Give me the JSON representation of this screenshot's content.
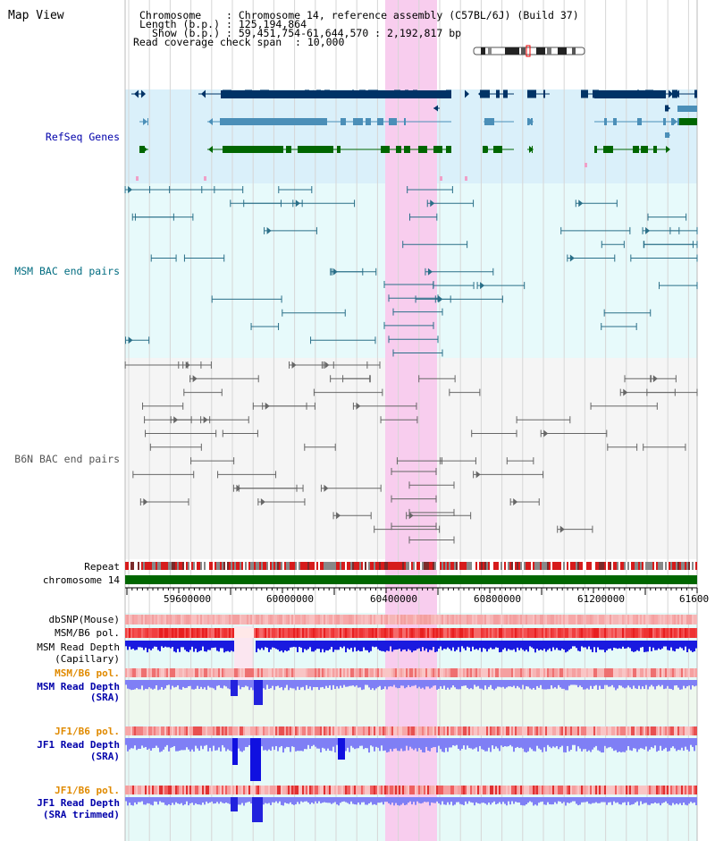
{
  "page": {
    "title": "Map View"
  },
  "header": {
    "chromosome_key": "Chromosome",
    "chromosome_value": ": Chromosome 14, reference assembly (C57BL/6J) (Build 37)",
    "length_key": "Length (b.p.)",
    "length_value": ": 125,194,864",
    "show_key": "Show (b.p.)",
    "show_value": ": 59,451,754-61,644,570 : 2,192,817 bp",
    "coverage_key": "Read coverage check span",
    "coverage_value": ": 10,000"
  },
  "tracks": {
    "refseq": "RefSeq Genes",
    "msm_bac": "MSM BAC end pairs",
    "b6n_bac": "B6N BAC end pairs",
    "repeat": "Repeat",
    "chromosome": "chromosome 14",
    "dbsnp": "dbSNP(Mouse)",
    "msm_b6_pol_1": "MSM/B6 pol.",
    "msm_depth_cap_1": "MSM Read Depth",
    "msm_depth_cap_2": "(Capillary)",
    "msm_b6_pol_2": "MSM/B6 pol.",
    "msm_depth_sra_1": "MSM Read Depth",
    "msm_depth_sra_2": "(SRA)",
    "jf1_b6_pol_1": "JF1/B6 pol.",
    "jf1_depth_sra_1": "JF1 Read Depth",
    "jf1_depth_sra_2": "(SRA)",
    "jf1_b6_pol_2": "JF1/B6 pol.",
    "jf1_depth_trim_1": "JF1 Read Depth",
    "jf1_depth_trim_2": "(SRA trimmed)"
  },
  "axis": {
    "ticks": [
      "59600000",
      "60000000",
      "60400000",
      "60800000",
      "61200000",
      "61600"
    ]
  },
  "colors": {
    "refseq_label": "#0000aa",
    "msm_label": "#006c80",
    "b6n_label": "#555555",
    "pol_label": "#e08a00",
    "depth_label": "#0000aa",
    "highlight": "#f8cdee",
    "chromosome_bar": "#006600",
    "gene_dark": "#003366",
    "gene_mid": "#4b8fb8",
    "gene_green": "#006600"
  }
}
